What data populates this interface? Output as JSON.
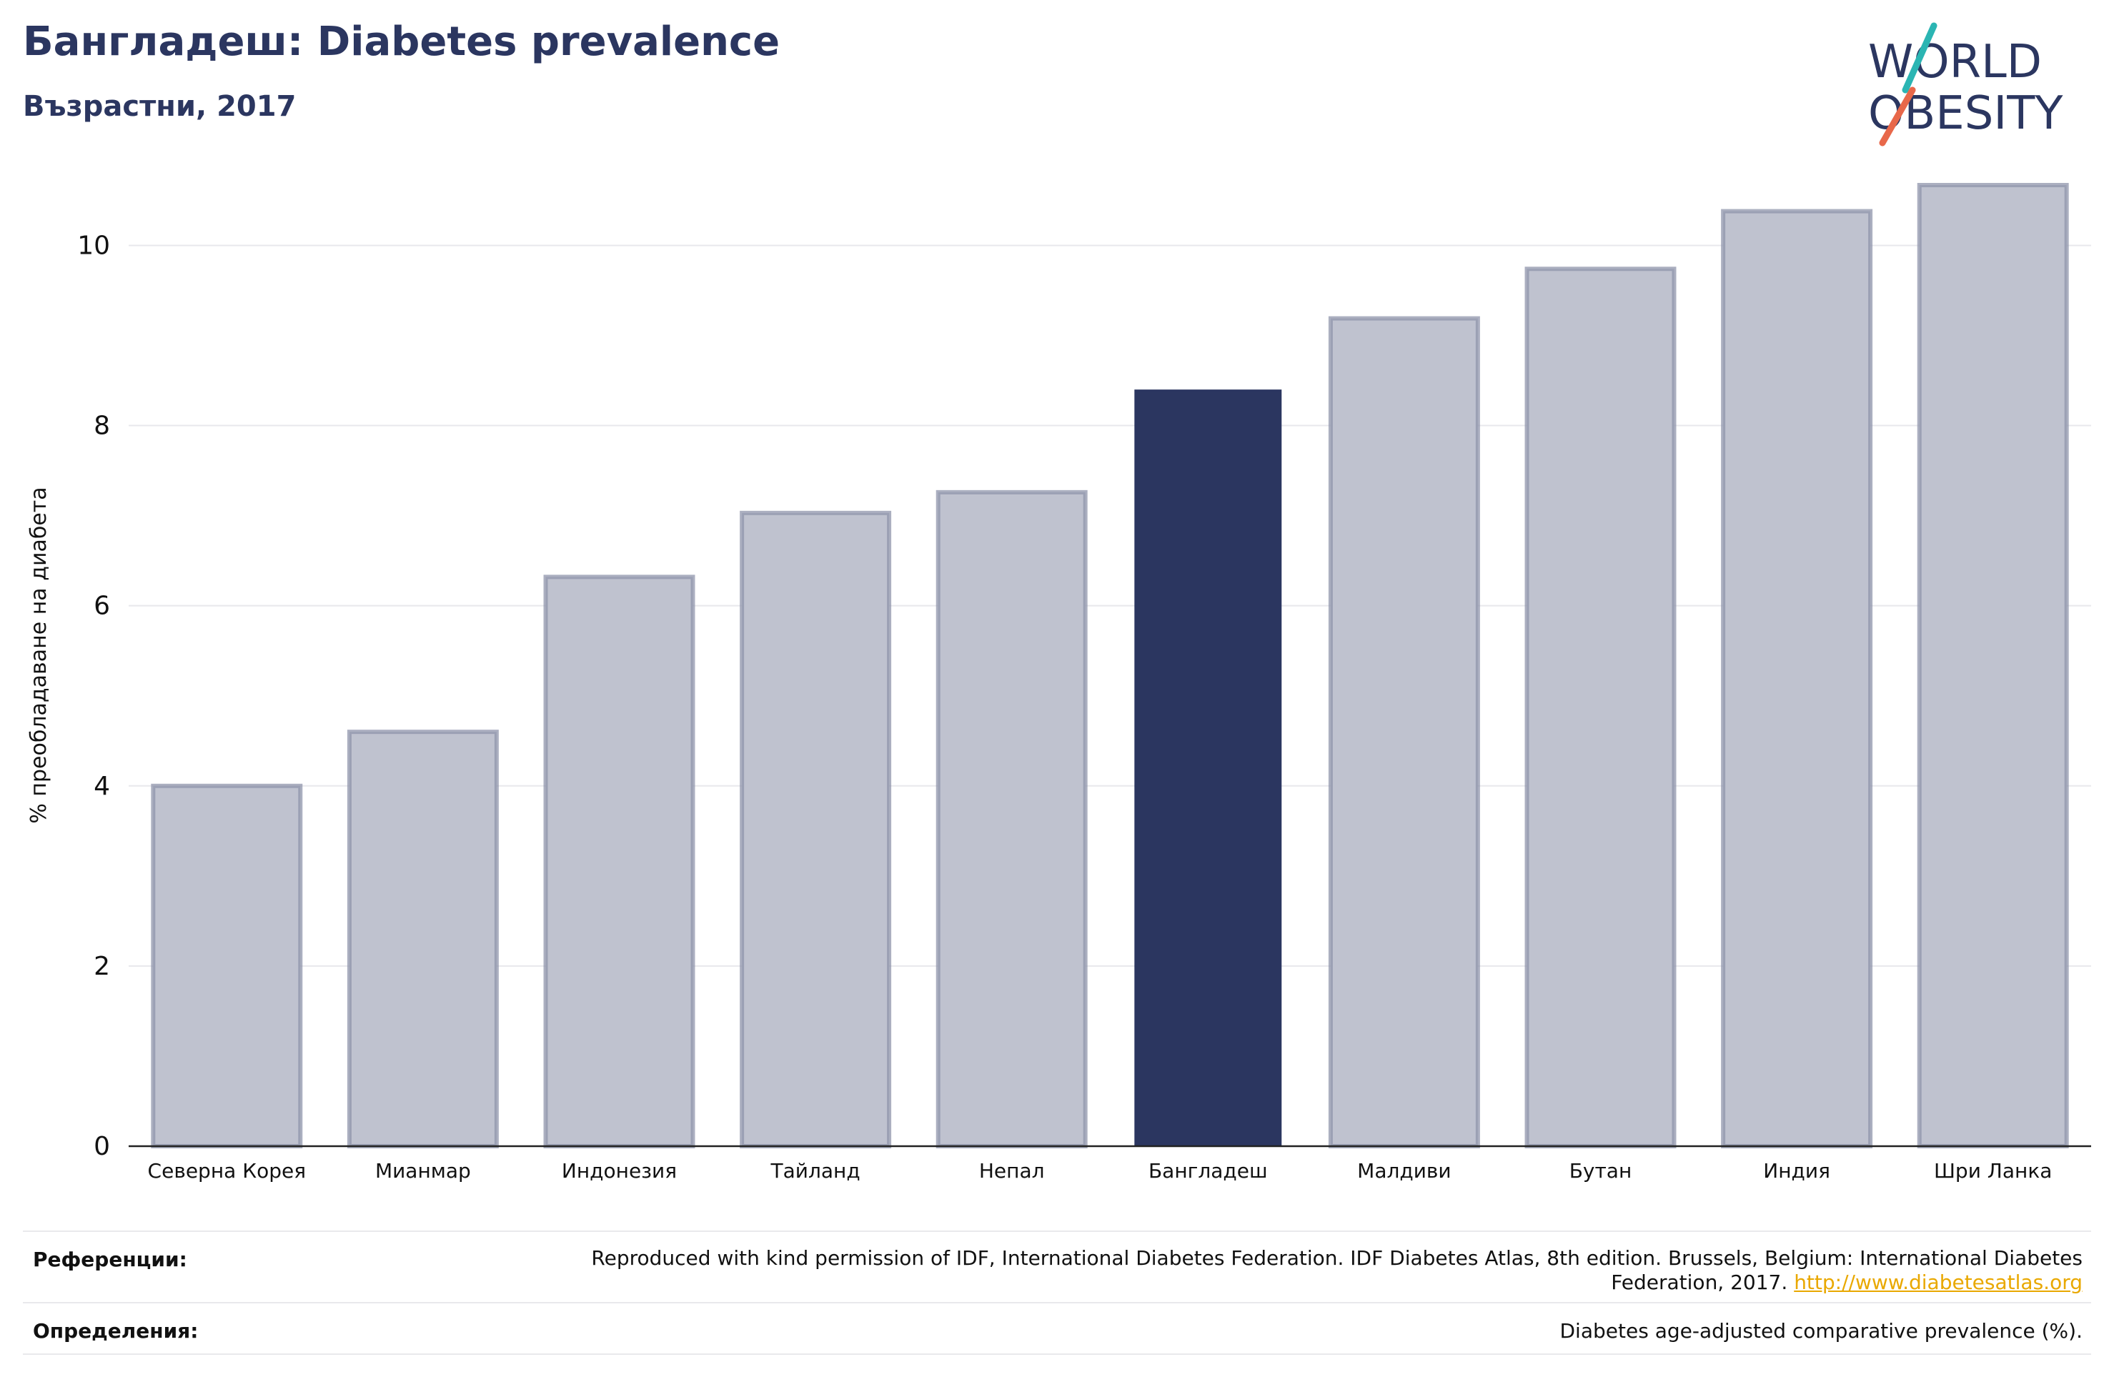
{
  "header": {
    "title": "Бангладеш: Diabetes prevalence",
    "subtitle": "Възрастни, 2017"
  },
  "logo": {
    "line1": "WORLD",
    "line2": "OBESITY",
    "accent_teal": "#2bb5b3",
    "accent_orange": "#e8684a",
    "text_color": "#2b3660"
  },
  "colors": {
    "highlight": "#2b3660",
    "bar_fill": "#bfc2cf",
    "bar_edge": "#8f94ab",
    "grid": "#e8e8ec"
  },
  "chart_data": {
    "type": "bar",
    "categories": [
      "Северна Корея",
      "Мианмар",
      "Индонезия",
      "Тайланд",
      "Непал",
      "Бангладеш",
      "Малдиви",
      "Бутан",
      "Индия",
      "Шри Ланка"
    ],
    "values": [
      4.0,
      4.6,
      6.32,
      7.03,
      7.26,
      8.4,
      9.19,
      9.74,
      10.38,
      10.67
    ],
    "highlight_category": "Бангладеш",
    "ylabel": "% преобладаване на диабета",
    "ylim": [
      0,
      10.9
    ],
    "yticks": [
      0,
      2,
      4,
      6,
      8,
      10
    ],
    "grid": true
  },
  "footer": {
    "references_label": "Референции:",
    "references_text": "Reproduced with kind permission of IDF, International Diabetes Federation. IDF Diabetes Atlas, 8th edition. Brussels, Belgium: International Diabetes Federation, 2017.",
    "references_link": "http://www.diabetesatlas.org",
    "definitions_label": "Определения:",
    "definitions_text": "Diabetes age-adjusted comparative prevalence (%)."
  }
}
